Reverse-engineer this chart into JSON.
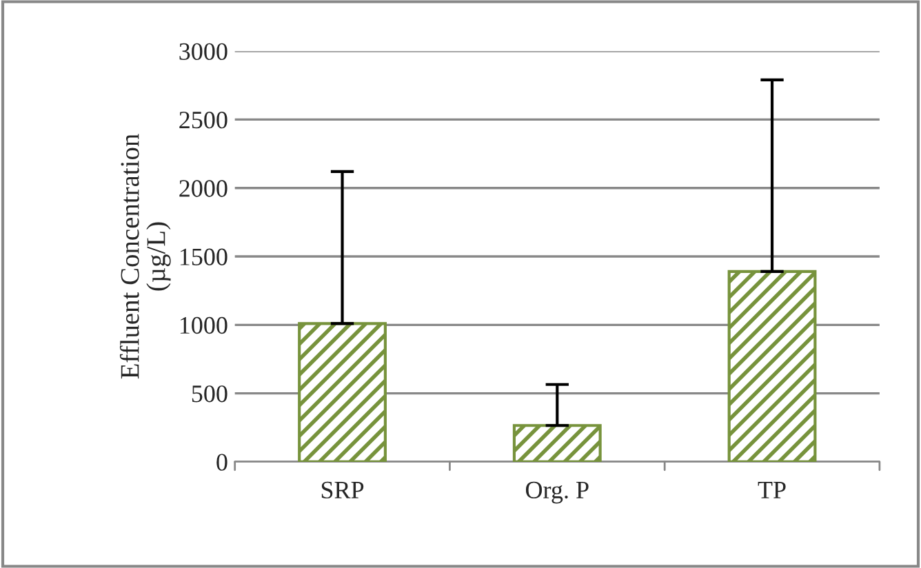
{
  "chart_data": {
    "type": "bar",
    "ylabel": "Effluent Concentration\n(µg/L)",
    "categories": [
      "SRP",
      "Org. P",
      "TP"
    ],
    "values": [
      1010,
      265,
      1390
    ],
    "errors": [
      [
        1010,
        2120
      ],
      [
        265,
        565
      ],
      [
        1390,
        2790
      ]
    ],
    "color": "#77933c",
    "ylim": [
      0,
      3000
    ],
    "yticks": [
      0,
      500,
      1000,
      1500,
      2000,
      2500,
      3000
    ],
    "grid": "y",
    "legend": false
  }
}
